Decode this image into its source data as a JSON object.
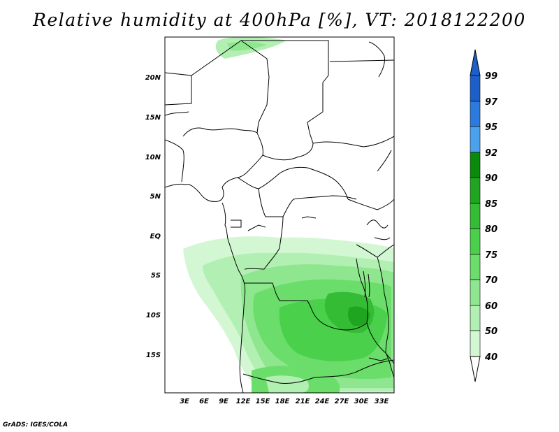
{
  "title": "Relative humidity at 400hPa [%], VT: 2018122200",
  "credit": "GrADS: IGES/COLA",
  "lat_labels": [
    "20N",
    "15N",
    "10N",
    "5N",
    "EQ",
    "5S",
    "10S",
    "15S"
  ],
  "lon_labels": [
    "3E",
    "6E",
    "9E",
    "12E",
    "15E",
    "18E",
    "21E",
    "24E",
    "27E",
    "30E",
    "33E"
  ],
  "colorbar": {
    "labels": [
      "99",
      "97",
      "95",
      "92",
      "90",
      "85",
      "80",
      "75",
      "70",
      "60",
      "50",
      "40"
    ],
    "colors": [
      "#1c5fc9",
      "#2a7ae0",
      "#4aa2ee",
      "#0a8a0a",
      "#1fa51f",
      "#35bc35",
      "#4ad04a",
      "#6add6a",
      "#8ee68e",
      "#b2efb2",
      "#d2f7d2",
      "#eefcee"
    ]
  }
}
